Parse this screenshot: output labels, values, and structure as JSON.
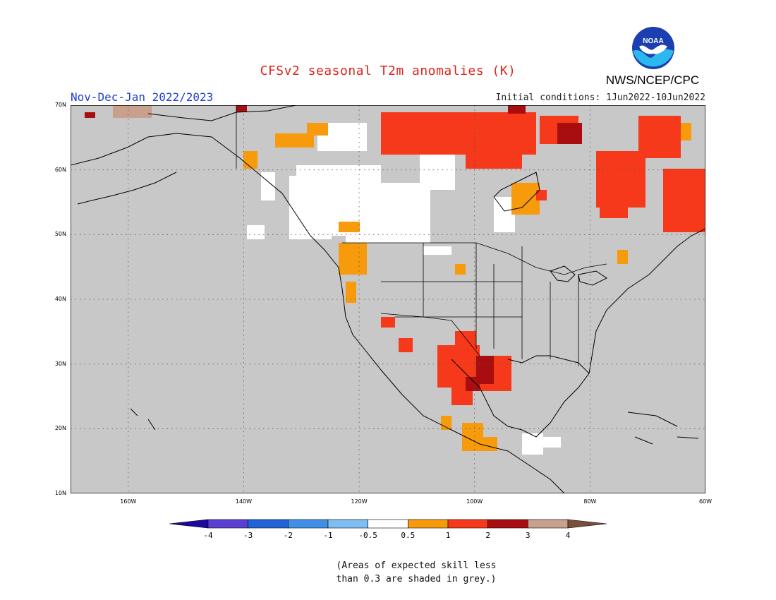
{
  "title": "CFSv2 seasonal T2m anomalies (K)",
  "season": "Nov-Dec-Jan 2022/2023",
  "initial_conditions": "Initial conditions: 1Jun2022-10Jun2022",
  "agency": "NWS/NCEP/CPC",
  "logo_text": "NOAA",
  "map": {
    "lat_labels": [
      "70N",
      "60N",
      "50N",
      "40N",
      "30N",
      "20N",
      "10N"
    ],
    "lon_labels": [
      "160W",
      "140W",
      "120W",
      "100W",
      "80W",
      "60W"
    ],
    "lat_range": [
      10,
      70
    ],
    "lon_range": [
      -170,
      -60
    ],
    "grid": "dotted",
    "no_skill_color": "#c8c8c8"
  },
  "colorbar": {
    "tick_labels": [
      "-4",
      "-3",
      "-2",
      "-1",
      "-0.5",
      "0.5",
      "1",
      "2",
      "3",
      "4"
    ],
    "colors": [
      "#1c0aa0",
      "#5a3fd0",
      "#1f63d6",
      "#3f8fe8",
      "#7fbef2",
      "#ffffff",
      "#f79b0c",
      "#f6391b",
      "#a80e10",
      "#c7a08e",
      "#7a4e3c"
    ]
  },
  "footnote": [
    "(Areas of expected skill less",
    "than 0.3 are shaded in grey.)"
  ]
}
